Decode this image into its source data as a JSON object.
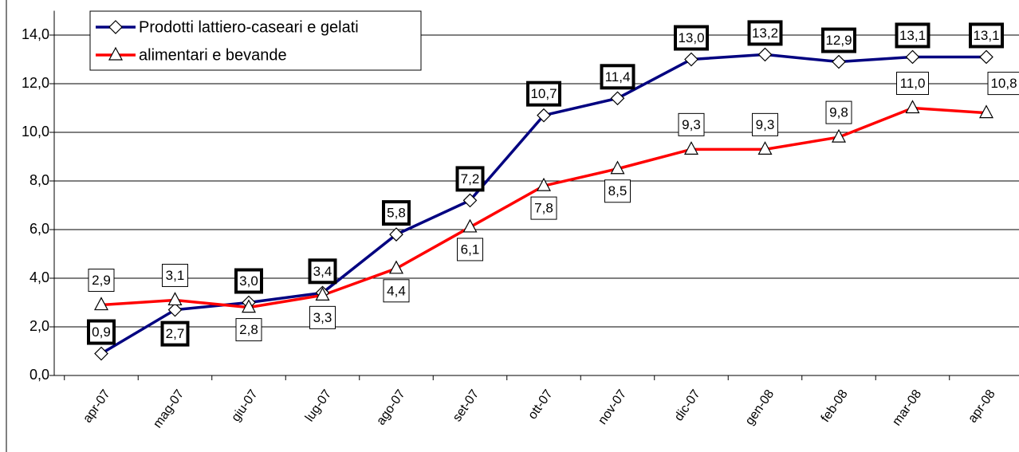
{
  "chart_data": {
    "type": "line",
    "categories": [
      "apr-07",
      "mag-07",
      "giu-07",
      "lug-07",
      "ago-07",
      "set-07",
      "ott-07",
      "nov-07",
      "dic-07",
      "gen-08",
      "feb-08",
      "mar-08",
      "apr-08"
    ],
    "series": [
      {
        "name": "Prodotti lattiero-caseari e gelati",
        "color": "#000080",
        "marker": "diamond",
        "values": [
          0.9,
          2.7,
          3.0,
          3.4,
          5.8,
          7.2,
          10.7,
          11.4,
          13.0,
          13.2,
          12.9,
          13.1,
          13.1
        ],
        "value_labels": [
          "0,9",
          "2,7",
          "3,0",
          "3,4",
          "5,8",
          "7,2",
          "10,7",
          "11,4",
          "13,0",
          "13,2",
          "12,9",
          "13,1",
          "13,1"
        ]
      },
      {
        "name": "alimentari e bevande",
        "color": "#ff0000",
        "marker": "triangle",
        "values": [
          2.9,
          3.1,
          2.8,
          3.3,
          4.4,
          6.1,
          7.8,
          8.5,
          9.3,
          9.3,
          9.8,
          11.0,
          10.8
        ],
        "value_labels": [
          "2,9",
          "3,1",
          "2,8",
          "3,3",
          "4,4",
          "6,1",
          "7,8",
          "8,5",
          "9,3",
          "9,3",
          "9,8",
          "11,0",
          "10,8"
        ]
      }
    ],
    "ylim": [
      0,
      15
    ],
    "yticks": [
      {
        "value": 0,
        "label": "0,0"
      },
      {
        "value": 2,
        "label": "2,0"
      },
      {
        "value": 4,
        "label": "4,0"
      },
      {
        "value": 6,
        "label": "6,0"
      },
      {
        "value": 8,
        "label": "8,0"
      },
      {
        "value": 10,
        "label": "10,0"
      },
      {
        "value": 12,
        "label": "12,0"
      },
      {
        "value": 14,
        "label": "14,0"
      }
    ],
    "grid": true,
    "legend": "top-left"
  }
}
